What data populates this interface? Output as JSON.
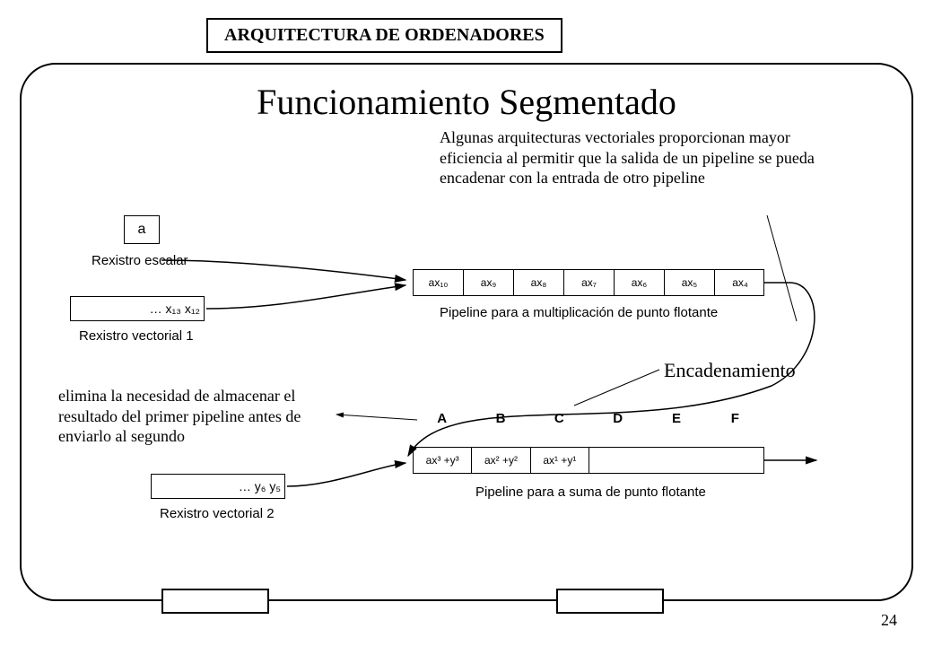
{
  "header": {
    "title": "ARQUITECTURA DE ORDENADORES"
  },
  "page": {
    "number": "24"
  },
  "slide": {
    "title": "Funcionamiento Segmentado",
    "note_top": "Algunas arquitecturas vectoriales proporcionan mayor eficiencia al permitir que la salida de un pipeline se pueda encadenar con la entrada de otro pipeline",
    "note_left": "elimina la necesidad de almacenar el resultado del primer pipeline antes de enviarlo al segundo",
    "chain_label": "Encadenamiento"
  },
  "diagram": {
    "scalar": {
      "value": "a",
      "label": "Rexistro escalar"
    },
    "vec1": {
      "content": "… x₁₃ x₁₂",
      "label": "Rexistro vectorial 1"
    },
    "vec2": {
      "content": "… y₆ y₅",
      "label": "Rexistro vectorial 2"
    },
    "pipe_mul": {
      "cells": [
        "ax₁₀",
        "ax₉",
        "ax₈",
        "ax₇",
        "ax₆",
        "ax₅",
        "ax₄"
      ],
      "caption": "Pipeline para a multiplicación de punto flotante"
    },
    "stages": [
      "A",
      "B",
      "C",
      "D",
      "E",
      "F"
    ],
    "pipe_add": {
      "cells": [
        "ax³ +y³",
        "ax² +y²",
        "ax¹ +y¹"
      ],
      "caption": "Pipeline para a suma de punto flotante"
    },
    "colors": {
      "stroke": "#000000",
      "bg": "#ffffff"
    }
  }
}
